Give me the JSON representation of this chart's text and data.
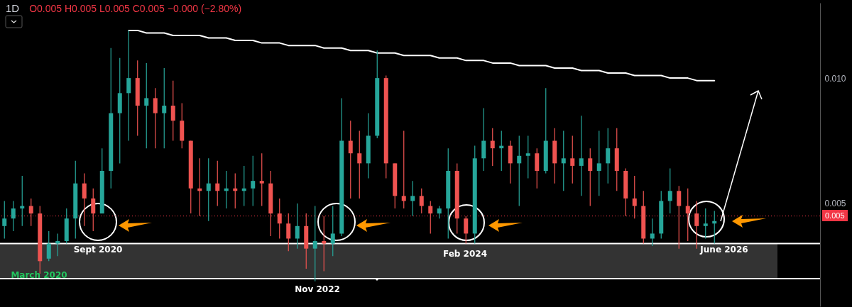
{
  "chart_data": {
    "type": "candlestick",
    "title": "1D",
    "subtitle": "O0.005 H0.005 L0.005 C0.005 −0.000 (−2.80%)",
    "categories": [
      null,
      null,
      null,
      null,
      null,
      null,
      null,
      null,
      null,
      null,
      null,
      null,
      null,
      null,
      null,
      null,
      null,
      null,
      null,
      null,
      null,
      null,
      null,
      null,
      null,
      null,
      null,
      null,
      null,
      null,
      null,
      null,
      null,
      null,
      null,
      null,
      null,
      null,
      null,
      null,
      null,
      null,
      null,
      null,
      null,
      null,
      null,
      null,
      null,
      null,
      null,
      null,
      null,
      null,
      null,
      null,
      null,
      null,
      null,
      null,
      null,
      null,
      null,
      null,
      null,
      null,
      null,
      null,
      null,
      null,
      null,
      null,
      null,
      null,
      null,
      null,
      null,
      null,
      null,
      null,
      null
    ],
    "ohlc": [
      [
        0.0041,
        0.0051,
        0.0036,
        0.0044
      ],
      [
        0.0044,
        0.0051,
        0.0039,
        0.0048
      ],
      [
        0.0048,
        0.0061,
        0.0041,
        0.0049
      ],
      [
        0.0049,
        0.0052,
        0.0041,
        0.0046
      ],
      [
        0.0046,
        0.0049,
        0.0022,
        0.0027
      ],
      [
        0.0028,
        0.0039,
        0.0027,
        0.0034
      ],
      [
        0.0034,
        0.0038,
        0.0029,
        0.0035
      ],
      [
        0.0035,
        0.0048,
        0.0034,
        0.0044
      ],
      [
        0.0044,
        0.0067,
        0.0036,
        0.0058
      ],
      [
        0.0058,
        0.0062,
        0.0041,
        0.0052
      ],
      [
        0.0052,
        0.0056,
        0.0039,
        0.0046
      ],
      [
        0.0046,
        0.0072,
        0.0046,
        0.0063
      ],
      [
        0.0063,
        0.0112,
        0.0056,
        0.0086
      ],
      [
        0.0086,
        0.0108,
        0.0066,
        0.0094
      ],
      [
        0.0094,
        0.0119,
        0.0075,
        0.01
      ],
      [
        0.01,
        0.0107,
        0.0077,
        0.0089
      ],
      [
        0.0089,
        0.0106,
        0.0072,
        0.0092
      ],
      [
        0.0092,
        0.0096,
        0.0072,
        0.0086
      ],
      [
        0.0086,
        0.0104,
        0.0072,
        0.0089
      ],
      [
        0.0089,
        0.0099,
        0.0075,
        0.0083
      ],
      [
        0.0083,
        0.009,
        0.0072,
        0.0075
      ],
      [
        0.0075,
        0.0075,
        0.0046,
        0.0056
      ],
      [
        0.0056,
        0.0068,
        0.0045,
        0.0055
      ],
      [
        0.0055,
        0.0068,
        0.0043,
        0.0058
      ],
      [
        0.0058,
        0.0067,
        0.0049,
        0.0055
      ],
      [
        0.0055,
        0.0063,
        0.0048,
        0.0056
      ],
      [
        0.0056,
        0.0062,
        0.0048,
        0.0055
      ],
      [
        0.0055,
        0.0065,
        0.0049,
        0.0056
      ],
      [
        0.0056,
        0.0069,
        0.0049,
        0.0059
      ],
      [
        0.0059,
        0.007,
        0.0049,
        0.0058
      ],
      [
        0.0058,
        0.0063,
        0.0037,
        0.0046
      ],
      [
        0.0046,
        0.0052,
        0.0036,
        0.0042
      ],
      [
        0.0042,
        0.0046,
        0.0031,
        0.0036
      ],
      [
        0.0036,
        0.005,
        0.0032,
        0.0041
      ],
      [
        0.0041,
        0.0046,
        0.0024,
        0.0032
      ],
      [
        0.0032,
        0.0049,
        0.0019,
        0.0035
      ],
      [
        0.0035,
        0.0045,
        0.0023,
        0.0034
      ],
      [
        0.0034,
        0.0049,
        0.0029,
        0.0038
      ],
      [
        0.0038,
        0.0092,
        0.0037,
        0.0075
      ],
      [
        0.0075,
        0.0083,
        0.0052,
        0.007
      ],
      [
        0.007,
        0.0079,
        0.0052,
        0.0066
      ],
      [
        0.0066,
        0.0086,
        0.006,
        0.0077
      ],
      [
        0.0077,
        0.0111,
        0.0076,
        0.01
      ],
      [
        0.01,
        0.0101,
        0.006,
        0.0066
      ],
      [
        0.0066,
        0.0066,
        0.0048,
        0.0053
      ],
      [
        0.0053,
        0.0079,
        0.0048,
        0.0051
      ],
      [
        0.0051,
        0.0059,
        0.0045,
        0.0053
      ],
      [
        0.0053,
        0.0056,
        0.0046,
        0.0049
      ],
      [
        0.0049,
        0.0051,
        0.0038,
        0.0046
      ],
      [
        0.0046,
        0.0049,
        0.0044,
        0.0048
      ],
      [
        0.0048,
        0.0072,
        0.0036,
        0.0063
      ],
      [
        0.0063,
        0.0066,
        0.0038,
        0.0044
      ],
      [
        0.0044,
        0.0045,
        0.0034,
        0.0038
      ],
      [
        0.0038,
        0.0073,
        0.0034,
        0.0068
      ],
      [
        0.0068,
        0.0088,
        0.0063,
        0.0075
      ],
      [
        0.0075,
        0.008,
        0.0065,
        0.0072
      ],
      [
        0.0072,
        0.0079,
        0.0063,
        0.0073
      ],
      [
        0.0073,
        0.0075,
        0.0058,
        0.0066
      ],
      [
        0.0066,
        0.0077,
        0.0049,
        0.0069
      ],
      [
        0.0069,
        0.0077,
        0.006,
        0.007
      ],
      [
        0.007,
        0.0072,
        0.0056,
        0.0063
      ],
      [
        0.0063,
        0.0096,
        0.0062,
        0.0075
      ],
      [
        0.0075,
        0.008,
        0.0058,
        0.0066
      ],
      [
        0.0066,
        0.0079,
        0.0055,
        0.0068
      ],
      [
        0.0068,
        0.0077,
        0.0058,
        0.0065
      ],
      [
        0.0065,
        0.0085,
        0.0053,
        0.0068
      ],
      [
        0.0068,
        0.0072,
        0.0049,
        0.0063
      ],
      [
        0.0063,
        0.0079,
        0.0053,
        0.0066
      ],
      [
        0.0066,
        0.008,
        0.0058,
        0.0072
      ],
      [
        0.0072,
        0.008,
        0.0055,
        0.0063
      ],
      [
        0.0063,
        0.0064,
        0.0045,
        0.0052
      ],
      [
        0.0052,
        0.0061,
        0.0044,
        0.0049
      ],
      [
        0.0049,
        0.0055,
        0.0034,
        0.0036
      ],
      [
        0.0036,
        0.0044,
        0.0033,
        0.0038
      ],
      [
        0.0038,
        0.0055,
        0.0036,
        0.0051
      ],
      [
        0.0051,
        0.0064,
        0.0046,
        0.0055
      ],
      [
        0.0055,
        0.0057,
        0.0032,
        0.0049
      ],
      [
        0.0049,
        0.0056,
        0.0035,
        0.0046
      ],
      [
        0.0046,
        0.0051,
        0.0032,
        0.0041
      ],
      [
        0.0041,
        0.0048,
        0.0036,
        0.0042
      ],
      [
        0.0042,
        0.0047,
        0.0034,
        0.0043
      ]
    ],
    "colors": [
      "#26a69a",
      "#26a69a",
      "#26a69a",
      "#ef5350",
      "#ef5350",
      "#26a69a",
      "#26a69a",
      "#26a69a",
      "#26a69a",
      "#ef5350",
      "#ef5350",
      "#26a69a",
      "#26a69a",
      "#26a69a",
      "#26a69a",
      "#ef5350",
      "#26a69a",
      "#ef5350",
      "#26a69a",
      "#ef5350",
      "#ef5350",
      "#ef5350",
      "#ef5350",
      "#26a69a",
      "#ef5350",
      "#26a69a",
      "#ef5350",
      "#26a69a",
      "#26a69a",
      "#ef5350",
      "#ef5350",
      "#ef5350",
      "#ef5350",
      "#26a69a",
      "#ef5350",
      "#26a69a",
      "#ef5350",
      "#26a69a",
      "#26a69a",
      "#ef5350",
      "#ef5350",
      "#26a69a",
      "#26a69a",
      "#ef5350",
      "#ef5350",
      "#ef5350",
      "#26a69a",
      "#ef5350",
      "#ef5350",
      "#26a69a",
      "#26a69a",
      "#ef5350",
      "#ef5350",
      "#26a69a",
      "#26a69a",
      "#ef5350",
      "#26a69a",
      "#ef5350",
      "#26a69a",
      "#26a69a",
      "#ef5350",
      "#26a69a",
      "#ef5350",
      "#26a69a",
      "#ef5350",
      "#26a69a",
      "#ef5350",
      "#26a69a",
      "#26a69a",
      "#ef5350",
      "#ef5350",
      "#ef5350",
      "#ef5350",
      "#26a69a",
      "#26a69a",
      "#26a69a",
      "#ef5350",
      "#ef5350",
      "#ef5350",
      "#26a69a",
      "#26a69a"
    ],
    "ylim": [
      0.0009,
      0.013
    ],
    "yticks": [
      0.005,
      {
        "value": 0.01,
        "label": "0.010"
      }
    ],
    "tick_labels": "y",
    "series": [
      {
        "type": "line",
        "color": "#ffffff",
        "values": [
          null,
          null,
          null,
          null,
          null,
          null,
          null,
          null,
          null,
          null,
          null,
          null,
          null,
          null,
          0.0119,
          0.0119,
          0.0118,
          0.0118,
          0.0118,
          0.0117,
          0.0117,
          0.0117,
          0.0117,
          0.0116,
          0.0116,
          0.0116,
          0.0115,
          0.0115,
          0.0115,
          0.0114,
          0.0114,
          0.0114,
          0.0113,
          0.0113,
          0.0113,
          0.0113,
          0.0112,
          0.0112,
          0.0112,
          0.0111,
          0.0111,
          0.0111,
          0.011,
          0.011,
          0.011,
          0.0109,
          0.0109,
          0.0109,
          0.0109,
          0.0108,
          0.0108,
          0.0108,
          0.0107,
          0.0107,
          0.0107,
          0.0106,
          0.0106,
          0.0106,
          0.0105,
          0.0105,
          0.0105,
          0.0105,
          0.0104,
          0.0104,
          0.0104,
          0.0103,
          0.0103,
          0.0103,
          0.0102,
          0.0102,
          0.0102,
          0.0101,
          0.0101,
          0.0101,
          0.0101,
          0.01,
          0.01,
          0.01,
          0.0099,
          0.0099,
          0.0099
        ]
      }
    ],
    "ref_lines": [
      {
        "axis": "y",
        "value": 0.0045,
        "label": "0.005",
        "color": "#f23645",
        "line_style": "dotted"
      },
      {
        "axis": "y",
        "value": 0.0034,
        "color": "#ffffff",
        "line_style": "solid"
      },
      {
        "axis": "y",
        "value": 0.002,
        "color": "#ffffff",
        "line_style": "solid"
      }
    ],
    "bands": [
      {
        "axis": "y",
        "from": 0.002,
        "to": 0.0034,
        "color": "#333333"
      }
    ],
    "annotations": [
      "March 2020",
      "Sept 2020",
      "Nov 2022",
      "Feb 2024",
      "June 2026"
    ]
  }
}
